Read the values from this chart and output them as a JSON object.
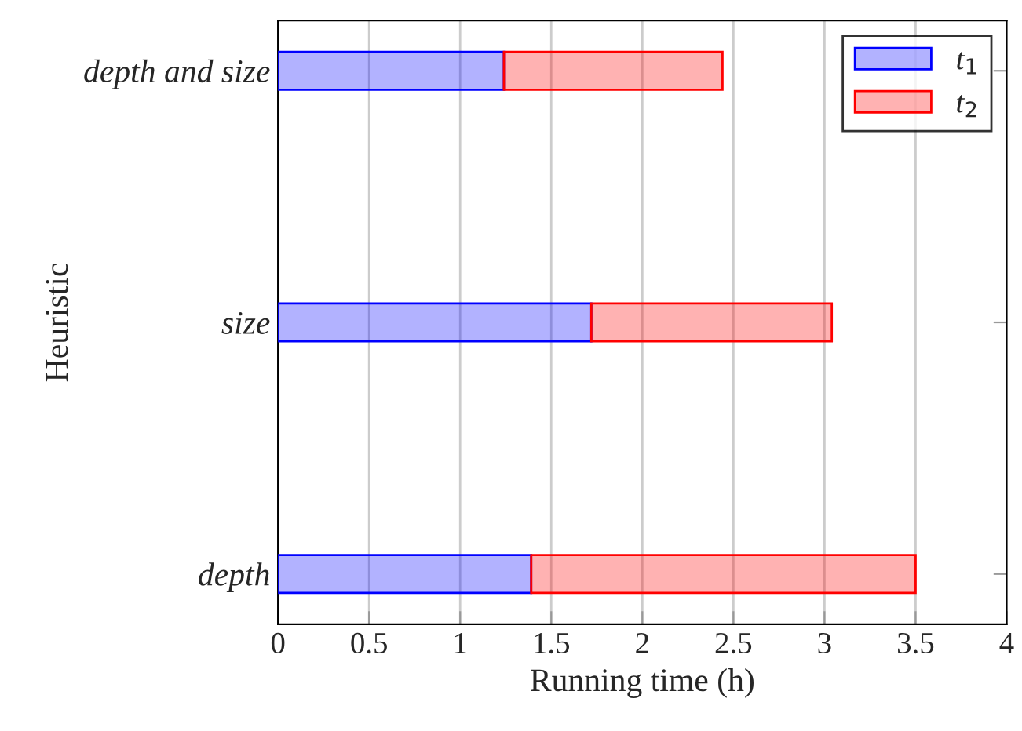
{
  "chart_data": {
    "type": "bar",
    "orientation": "horizontal",
    "stacked": true,
    "categories": [
      "depth and size",
      "size",
      "depth"
    ],
    "series": [
      {
        "name": "t$_{1}$",
        "color": "#0000ff",
        "values": [
          1.24,
          1.72,
          1.39
        ]
      },
      {
        "name": "t$_{2}$",
        "color": "#ff0000",
        "values": [
          1.2,
          1.32,
          2.11
        ]
      }
    ],
    "xlabel": "Running time (h)",
    "ylabel": "Heuristic",
    "xlim": [
      0,
      4
    ],
    "xticks": [
      0,
      0.5,
      1,
      1.5,
      2,
      2.5,
      3,
      3.5,
      4
    ],
    "grid": "x",
    "legend": "top right"
  }
}
